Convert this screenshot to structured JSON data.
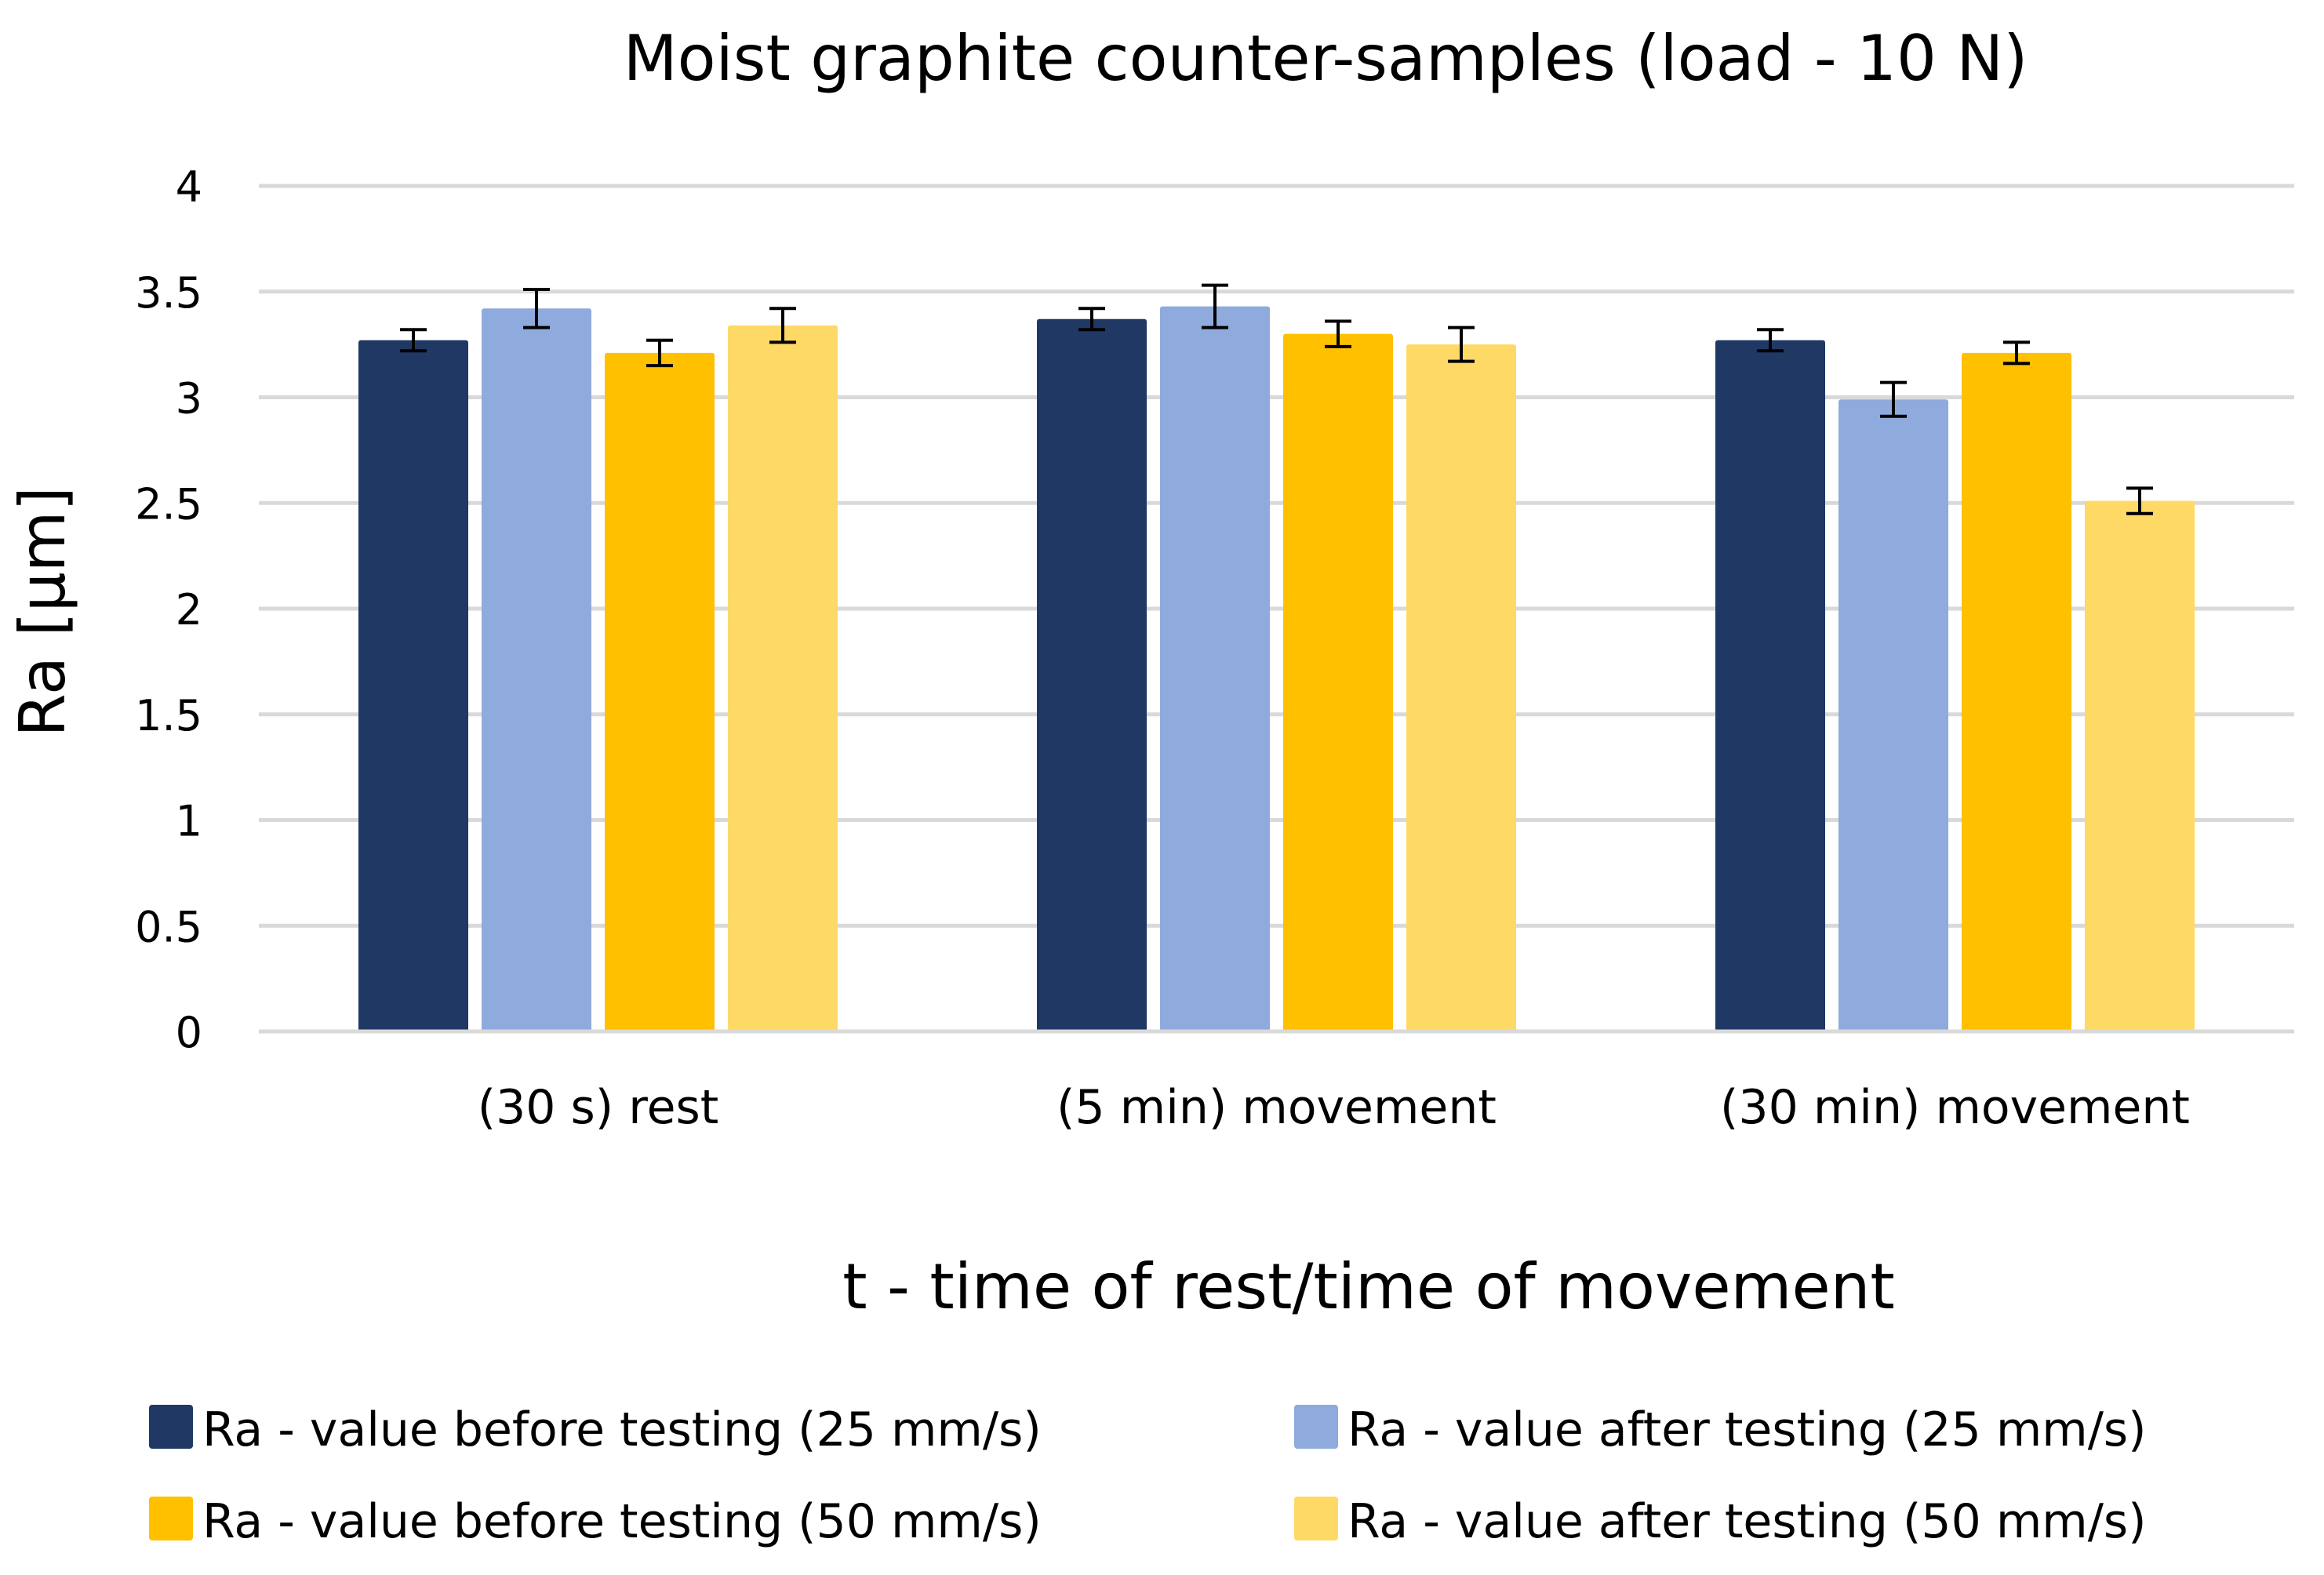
{
  "chart_data": {
    "type": "bar",
    "title": "Moist graphite counter-samples (load - 10 N)",
    "xlabel": "t - time of rest/time of movement",
    "ylabel": "Ra [µm]",
    "ylim": [
      0,
      4
    ],
    "yticks": [
      0,
      0.5,
      1,
      1.5,
      2,
      2.5,
      3,
      3.5,
      4
    ],
    "ytick_labels": [
      "0",
      "0.5",
      "1",
      "1.5",
      "2",
      "2.5",
      "3",
      "3.5",
      "4"
    ],
    "grid": true,
    "legend_position": "bottom",
    "categories": [
      "(30 s) rest",
      "(5 min) movement",
      "(30 min) movement"
    ],
    "series": [
      {
        "name": "Ra - value before testing (25 mm/s)",
        "color": "#203864",
        "values": [
          3.27,
          3.37,
          3.27
        ],
        "errors": [
          0.05,
          0.05,
          0.05
        ]
      },
      {
        "name": "Ra - value after testing (25 mm/s)",
        "color": "#8FAADC",
        "values": [
          3.42,
          3.43,
          2.99
        ],
        "errors": [
          0.09,
          0.1,
          0.08
        ]
      },
      {
        "name": "Ra - value before testing (50 mm/s)",
        "color": "#FFC000",
        "values": [
          3.21,
          3.3,
          3.21
        ],
        "errors": [
          0.06,
          0.06,
          0.05
        ]
      },
      {
        "name": "Ra - value after testing (50 mm/s)",
        "color": "#FFD966",
        "values": [
          3.34,
          3.25,
          2.51
        ],
        "errors": [
          0.08,
          0.08,
          0.06
        ]
      }
    ]
  }
}
